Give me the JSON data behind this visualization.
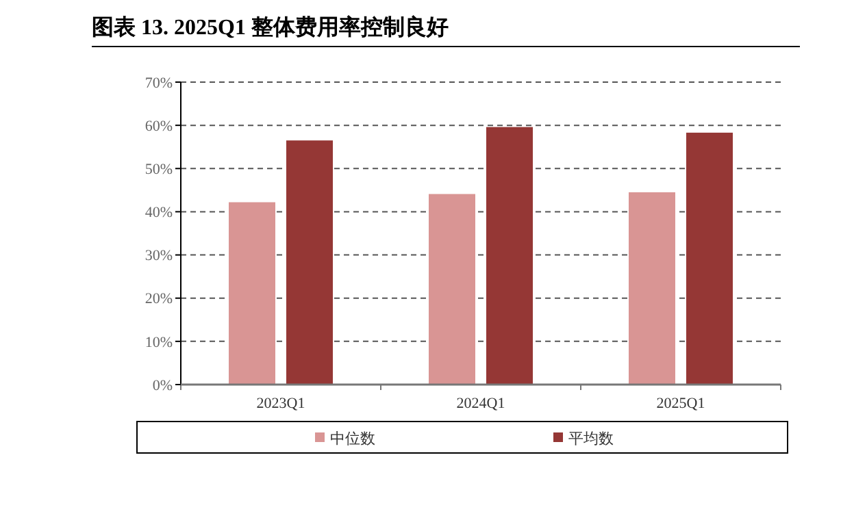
{
  "chart_data": {
    "type": "bar",
    "title": "图表 13. 2025Q1 整体费用率控制良好",
    "categories": [
      "2023Q1",
      "2024Q1",
      "2025Q1"
    ],
    "series": [
      {
        "name": "中位数",
        "color": "#d99594",
        "values": [
          42.2,
          44.1,
          44.5
        ]
      },
      {
        "name": "平均数",
        "color": "#953735",
        "values": [
          56.5,
          59.6,
          58.3
        ]
      }
    ],
    "ylim": [
      0,
      70
    ],
    "yticks": [
      {
        "value": 0,
        "label": "0%"
      },
      {
        "value": 10,
        "label": "10%"
      },
      {
        "value": 20,
        "label": "20%"
      },
      {
        "value": 30,
        "label": "30%"
      },
      {
        "value": 40,
        "label": "40%"
      },
      {
        "value": 50,
        "label": "50%"
      },
      {
        "value": 60,
        "label": "60%"
      },
      {
        "value": 70,
        "label": "70%"
      }
    ],
    "grid": "y",
    "legend": "bottom"
  }
}
